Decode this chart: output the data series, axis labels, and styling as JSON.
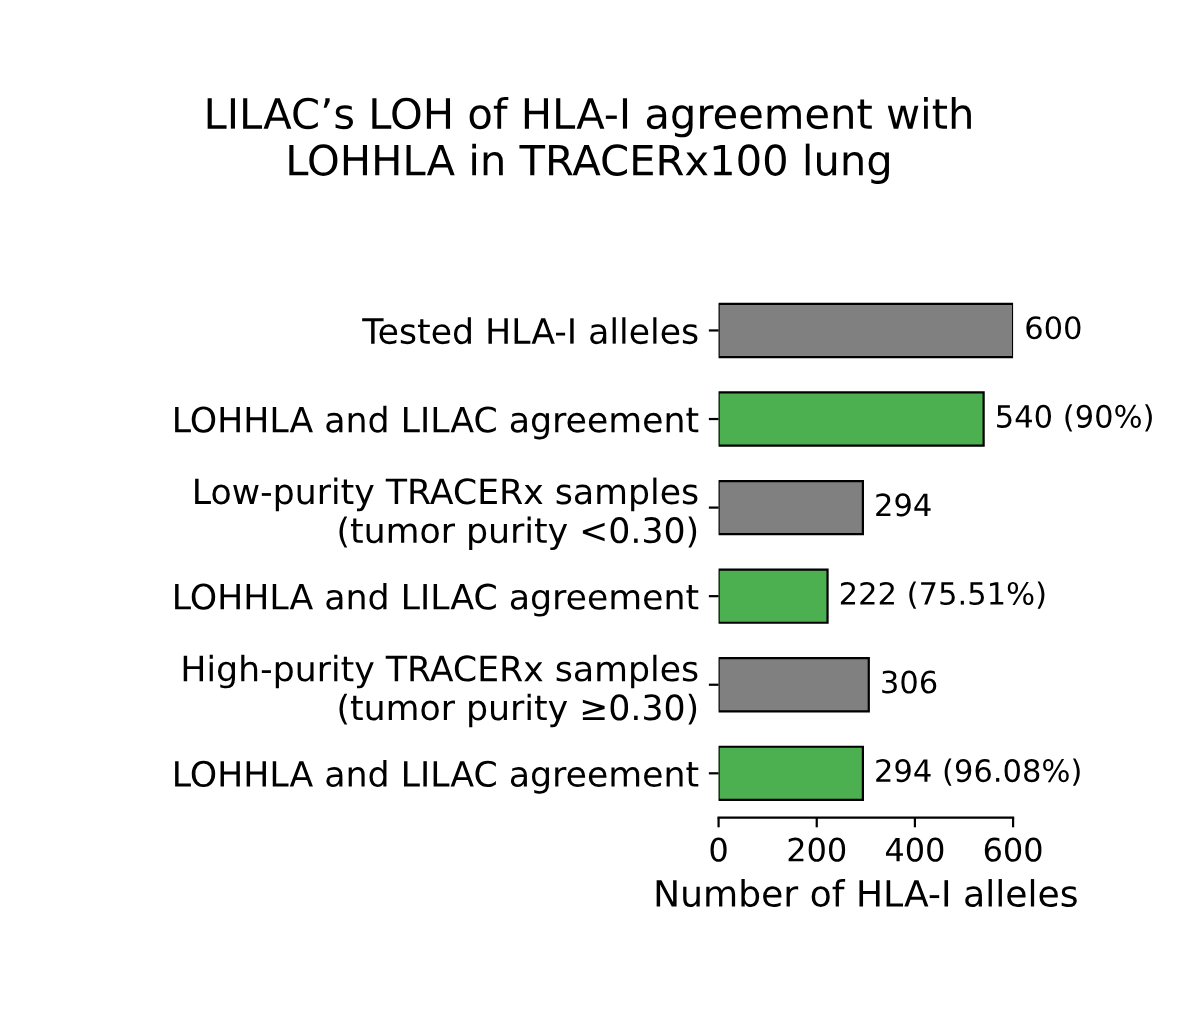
{
  "chart_data": {
    "type": "bar",
    "orientation": "horizontal",
    "title": "LILAC’s LOH of HLA-I agreement with\nLOHHLA in TRACERx100 lung",
    "xlabel": "Number of HLA-I alleles",
    "categories": [
      "Tested HLA-I alleles",
      "LOHHLA and LILAC agreement",
      "Low-purity TRACERx samples\n(tumor purity <0.30)",
      "LOHHLA and LILAC agreement",
      "High-purity TRACERx samples\n(tumor purity ≥0.30)",
      "LOHHLA and LILAC agreement"
    ],
    "values": [
      600,
      540,
      294,
      222,
      306,
      294
    ],
    "colors": [
      "#808080",
      "#4caf50",
      "#808080",
      "#4caf50",
      "#808080",
      "#4caf50"
    ],
    "value_labels": [
      "600",
      "540 (90%)",
      "294",
      "222 (75.51%)",
      "306",
      "294 (96.08%)"
    ],
    "xlim": [
      0,
      600
    ],
    "xticks": [
      0,
      200,
      400,
      600
    ],
    "grid": false,
    "legend": false
  }
}
